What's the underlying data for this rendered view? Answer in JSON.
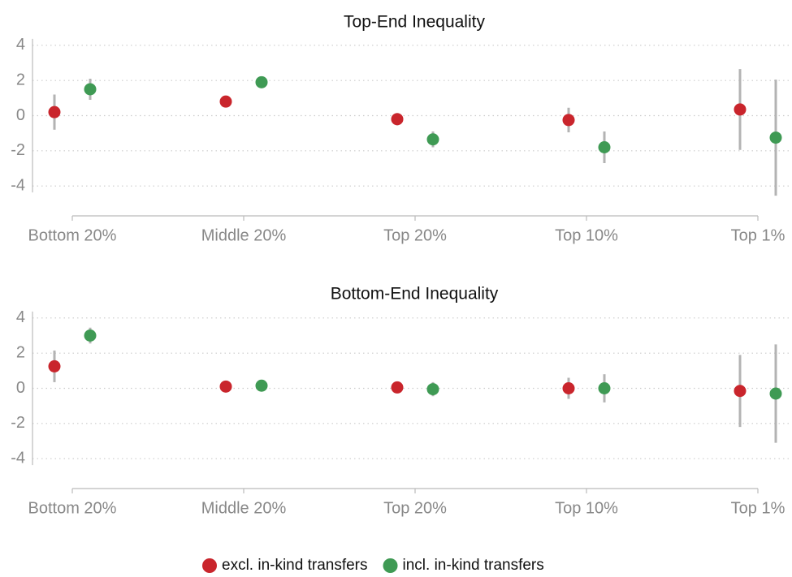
{
  "chart_data": [
    {
      "type": "dot-error",
      "title": "Top-End Inequality",
      "categories": [
        "Bottom 20%",
        "Middle 20%",
        "Top 20%",
        "Top 10%",
        "Top 1%"
      ],
      "series": [
        {
          "name": "excl. in-kind transfers",
          "color": "#c9252c",
          "values": [
            0.2,
            0.8,
            -0.2,
            -0.25,
            0.35
          ],
          "errors": [
            1.0,
            0.1,
            0.35,
            0.7,
            2.3
          ]
        },
        {
          "name": "incl. in-kind transfers",
          "color": "#3f9a54",
          "values": [
            1.5,
            1.9,
            -1.35,
            -1.8,
            -1.25
          ],
          "errors": [
            0.6,
            0.1,
            0.45,
            0.9,
            3.3
          ]
        }
      ],
      "ylim": [
        -5.7,
        4.5
      ],
      "yticks": [
        -4,
        -2,
        0,
        2,
        4
      ],
      "grid": true
    },
    {
      "type": "dot-error",
      "title": "Bottom-End Inequality",
      "categories": [
        "Bottom 20%",
        "Middle 20%",
        "Top 20%",
        "Top 10%",
        "Top 1%"
      ],
      "series": [
        {
          "color": "#c9252c",
          "values": [
            1.25,
            0.1,
            0.05,
            0.0,
            -0.15
          ],
          "errors": [
            0.9,
            0.05,
            0.1,
            0.6,
            2.05
          ]
        },
        {
          "color": "#3f9a54",
          "values": [
            3.0,
            0.15,
            -0.05,
            0.0,
            -0.3
          ],
          "errors": [
            0.45,
            0.05,
            0.4,
            0.8,
            2.8
          ]
        }
      ],
      "ylim": [
        -5.7,
        4.5
      ],
      "yticks": [
        -4,
        -2,
        0,
        2,
        4
      ],
      "grid": true
    }
  ]
}
